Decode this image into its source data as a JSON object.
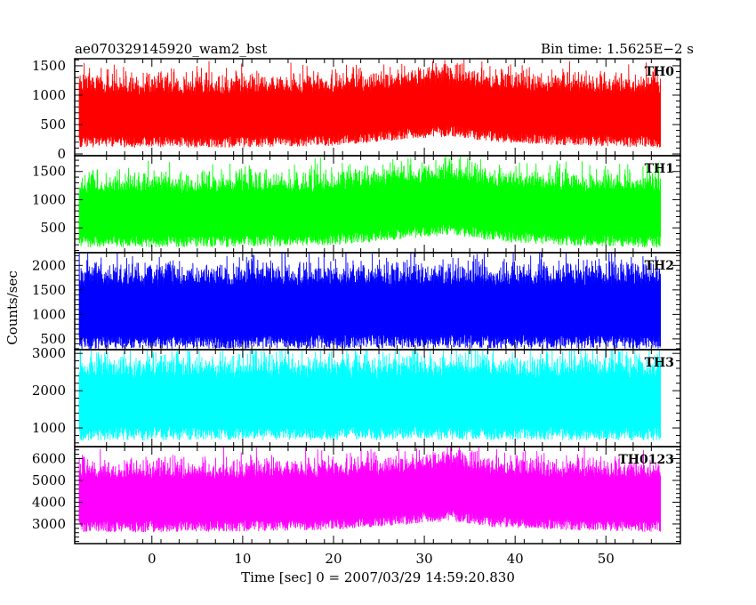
{
  "header": {
    "title_left": "ae070329145920_wam2_bst",
    "title_right": "Bin time: 1.5625E−2 s"
  },
  "chart_data": {
    "type": "line",
    "title": "ae070329145920_wam2_bst",
    "subtitle": "Bin time: 1.5625E−2 s",
    "xlabel": "Time [sec] 0 = 2007/03/29 14:59:20.830",
    "ylabel": "Counts/sec",
    "xlim": [
      -8.5,
      58.2
    ],
    "x_data_range": [
      -8.0,
      56.0
    ],
    "x_ticks": [
      0,
      10,
      20,
      30,
      40,
      50
    ],
    "x_tick_labels": [
      "0",
      "10",
      "20",
      "30",
      "40",
      "50"
    ],
    "grid": false,
    "legend": "none",
    "panels": [
      {
        "name": "TH0",
        "color": "#ff0000",
        "ylim": [
          -30,
          1620
        ],
        "y_ticks": [
          0,
          500,
          1000,
          1500
        ],
        "y_tick_labels": [
          "0",
          "500",
          "1000",
          "1500"
        ],
        "profile_x": [
          -8,
          0,
          10,
          20,
          27,
          33,
          38,
          45,
          56
        ],
        "profile_mean": [
          640,
          640,
          640,
          670,
          760,
          830,
          720,
          680,
          640
        ],
        "noise_sigma": 280
      },
      {
        "name": "TH1",
        "color": "#00ff00",
        "ylim": [
          60,
          1780
        ],
        "y_ticks": [
          500,
          1000,
          1500
        ],
        "y_tick_labels": [
          "500",
          "1000",
          "1500"
        ],
        "profile_x": [
          -8,
          0,
          10,
          20,
          27,
          33,
          38,
          45,
          56
        ],
        "profile_mean": [
          720,
          720,
          730,
          760,
          860,
          940,
          820,
          760,
          720
        ],
        "noise_sigma": 300
      },
      {
        "name": "TH2",
        "color": "#0000ff",
        "ylim": [
          280,
          2260
        ],
        "y_ticks": [
          500,
          1000,
          1500,
          2000
        ],
        "y_tick_labels": [
          "500",
          "1000",
          "1500",
          "2000"
        ],
        "profile_x": [
          -8,
          0,
          10,
          20,
          30,
          40,
          56
        ],
        "profile_mean": [
          1050,
          1050,
          1060,
          1060,
          1070,
          1060,
          1050
        ],
        "noise_sigma": 400
      },
      {
        "name": "TH3",
        "color": "#00ffff",
        "ylim": [
          500,
          3100
        ],
        "y_ticks": [
          1000,
          2000,
          3000
        ],
        "y_tick_labels": [
          "1000",
          "2000",
          "3000"
        ],
        "profile_x": [
          -8,
          0,
          10,
          20,
          30,
          40,
          56
        ],
        "profile_mean": [
          1650,
          1650,
          1660,
          1660,
          1670,
          1660,
          1650
        ],
        "noise_sigma": 520
      },
      {
        "name": "TH0123",
        "color": "#ff00ff",
        "ylim": [
          2100,
          6550
        ],
        "y_ticks": [
          3000,
          4000,
          5000,
          6000
        ],
        "y_tick_labels": [
          "3000",
          "4000",
          "5000",
          "6000"
        ],
        "profile_x": [
          -8,
          0,
          10,
          20,
          27,
          33,
          38,
          45,
          56
        ],
        "profile_mean": [
          4050,
          4050,
          4080,
          4150,
          4350,
          4550,
          4250,
          4150,
          4050
        ],
        "noise_sigma": 750
      }
    ]
  }
}
